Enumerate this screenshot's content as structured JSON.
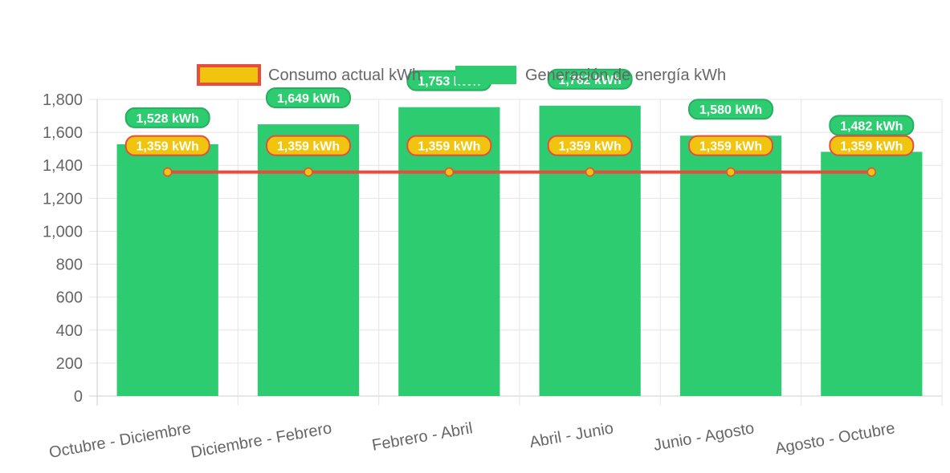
{
  "chart_data": {
    "type": "bar",
    "categories": [
      "Octubre - Diciembre",
      "Diciembre - Febrero",
      "Febrero - Abril",
      "Abril - Junio",
      "Junio - Agosto",
      "Agosto - Octubre"
    ],
    "series": [
      {
        "name": "Consumo actual kWh",
        "type": "line",
        "values": [
          1359,
          1359,
          1359,
          1359,
          1359,
          1359
        ],
        "data_labels": [
          "1,359 kWh",
          "1,359 kWh",
          "1,359 kWh",
          "1,359 kWh",
          "1,359 kWh",
          "1,359 kWh"
        ],
        "color": "#e74c3c",
        "fill_color": "#f1c40f"
      },
      {
        "name": "Generación de energía kWh",
        "type": "bar",
        "values": [
          1528,
          1649,
          1753,
          1762,
          1580,
          1482
        ],
        "data_labels": [
          "1,528 kWh",
          "1,649 kWh",
          "1,753 kWh",
          "1,762 kWh",
          "1,580 kWh",
          "1,482 kWh"
        ],
        "color": "#2ecc71"
      }
    ],
    "y_ticks": [
      "0",
      "200",
      "400",
      "600",
      "800",
      "1,000",
      "1,200",
      "1,400",
      "1,600",
      "1,800"
    ],
    "ylim": [
      0,
      1800
    ],
    "grid": true,
    "legend_position": "top"
  }
}
